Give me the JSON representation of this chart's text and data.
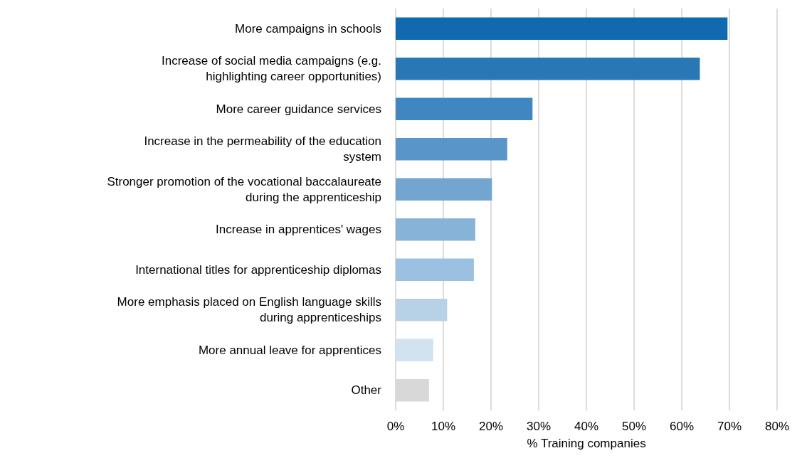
{
  "chart_data": {
    "type": "bar",
    "orientation": "horizontal",
    "xlabel": "% Training companies",
    "categories": [
      "More campaigns in schools",
      "Increase of social media campaigns (e.g.\nhighlighting career opportunities)",
      "More career guidance services",
      "Increase in the permeability of the education\nsystem",
      "Stronger promotion of the vocational baccalaureate\nduring the apprenticeship",
      "Increase in apprentices' wages",
      "International titles for apprenticeship diplomas",
      "More emphasis placed on English language skills\nduring apprenticeships",
      "More annual leave for apprentices",
      "Other"
    ],
    "values": [
      69.6,
      63.8,
      28.7,
      23.4,
      20.2,
      16.7,
      16.4,
      10.8,
      7.9,
      7.0
    ],
    "colors": [
      "#1269b0",
      "#2a77b6",
      "#4087c1",
      "#5995c8",
      "#72a6d1",
      "#88b3d8",
      "#9cc0df",
      "#b7d1e7",
      "#d1e2f0",
      "#d8d8d8"
    ],
    "xlim": [
      0,
      80
    ],
    "xticks": [
      {
        "value": 0,
        "label": "0%"
      },
      {
        "value": 10,
        "label": "10%"
      },
      {
        "value": 20,
        "label": "20%"
      },
      {
        "value": 30,
        "label": "30%"
      },
      {
        "value": 40,
        "label": "40%"
      },
      {
        "value": 50,
        "label": "50%"
      },
      {
        "value": 60,
        "label": "60%"
      },
      {
        "value": 70,
        "label": "70%"
      },
      {
        "value": 80,
        "label": "80%"
      }
    ],
    "grid": "x"
  }
}
